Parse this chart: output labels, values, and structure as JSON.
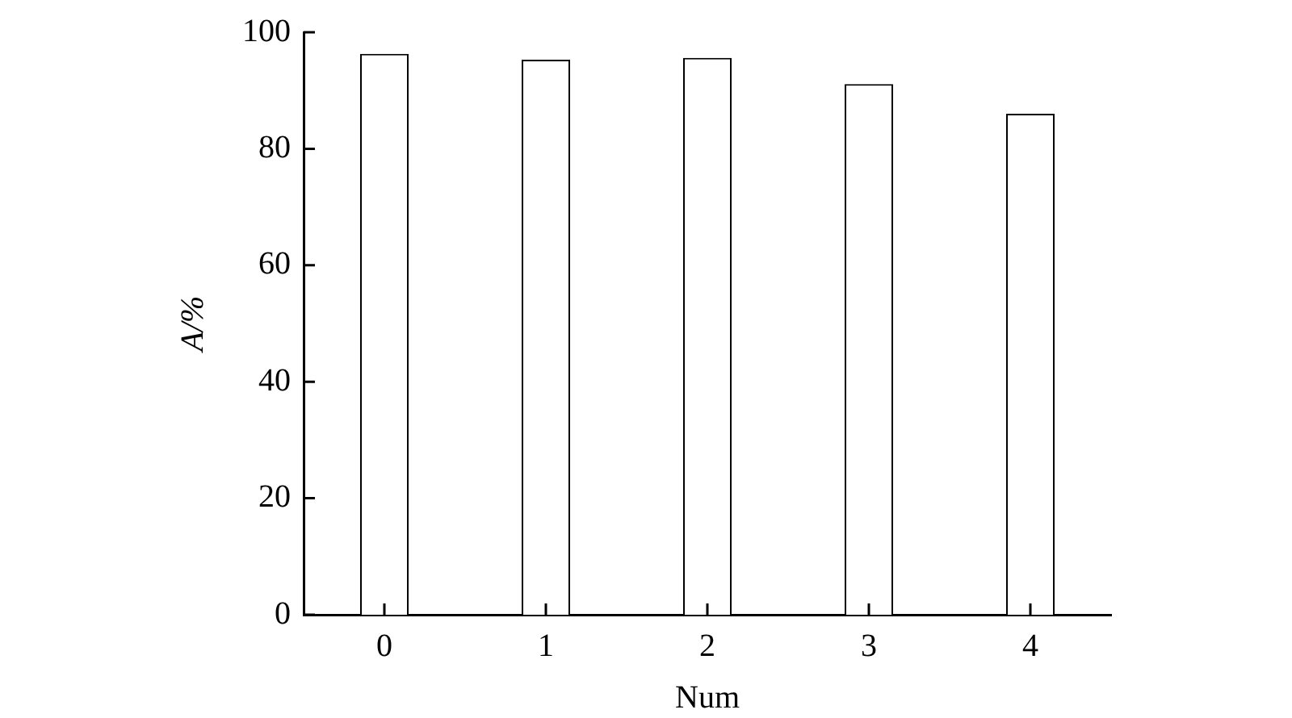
{
  "chart_data": {
    "type": "bar",
    "xlabel": "Num",
    "ylabel": "A/%",
    "categories": [
      "0",
      "1",
      "2",
      "3",
      "4"
    ],
    "series": [
      {
        "color": "#ffffff",
        "values": [
          96.3,
          95.3,
          95.6,
          91.1,
          86.0
        ]
      }
    ],
    "ylim": [
      0,
      100
    ],
    "yticks": [
      0,
      20,
      40,
      60,
      80,
      100
    ],
    "grid": false,
    "legend": false
  }
}
